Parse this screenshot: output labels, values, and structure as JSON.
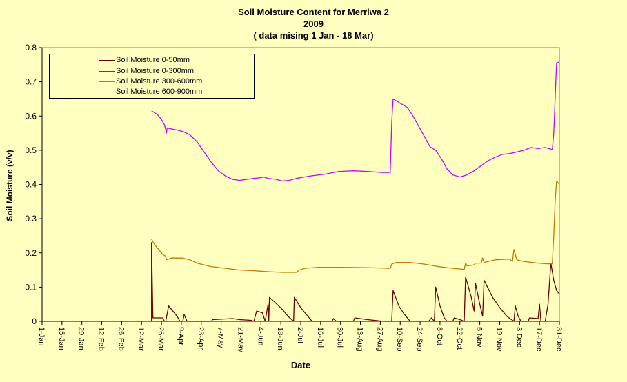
{
  "chart_data": {
    "type": "line",
    "title": "Soil Moisture Content for Merriwa 2",
    "subtitle": "2009",
    "note": "( data mising  1 Jan - 18 Mar)",
    "xlabel": "Date",
    "ylabel": "Soil Moisture (v/v)",
    "ylim": [
      0,
      0.8
    ],
    "yticks": [
      "0",
      "0.1",
      "0.2",
      "0.3",
      "0.4",
      "0.5",
      "0.6",
      "0.7",
      "0.8"
    ],
    "xticks": [
      "1-Jan",
      "15-Jan",
      "29-Jan",
      "12-Feb",
      "26-Feb",
      "12-Mar",
      "26-Mar",
      "9-Apr",
      "23-Apr",
      "7-May",
      "21-May",
      "4-Jun",
      "18-Jun",
      "2-Jul",
      "16-Jul",
      "30-Jul",
      "13-Aug",
      "27-Aug",
      "10-Sep",
      "24-Sep",
      "8-Oct",
      "22-Oct",
      "5-Nov",
      "19-Nov",
      "3-Dec",
      "17-Dec",
      "31-Dec"
    ],
    "xlim_days": [
      1,
      365
    ],
    "grid": false,
    "legend_position": "top-left",
    "series": [
      {
        "name": "Soil Moisture 0-50mm",
        "color": "#6b0000",
        "points": [
          [
            78,
            0.0
          ],
          [
            78,
            0.23
          ],
          [
            79,
            0.01
          ],
          [
            86,
            0.01
          ],
          [
            87,
            0.0
          ],
          [
            88,
            0.0
          ],
          [
            90,
            0.045
          ],
          [
            93,
            0.03
          ],
          [
            96,
            0.015
          ],
          [
            98,
            0.0
          ],
          [
            100,
            0.0
          ],
          [
            101,
            0.02
          ],
          [
            103,
            0.0
          ],
          [
            120,
            0.0
          ],
          [
            121,
            0.005
          ],
          [
            135,
            0.008
          ],
          [
            140,
            0.005
          ],
          [
            148,
            0.003
          ],
          [
            150,
            0.0
          ],
          [
            152,
            0.03
          ],
          [
            156,
            0.025
          ],
          [
            158,
            0.0
          ],
          [
            160,
            0.05
          ],
          [
            160.5,
            0.0
          ],
          [
            161,
            0.07
          ],
          [
            165,
            0.055
          ],
          [
            170,
            0.035
          ],
          [
            174,
            0.015
          ],
          [
            178,
            0.0
          ],
          [
            178.5,
            0.07
          ],
          [
            183,
            0.04
          ],
          [
            187,
            0.02
          ],
          [
            191,
            0.0
          ],
          [
            205,
            0.0
          ],
          [
            206,
            0.008
          ],
          [
            208,
            0.0
          ],
          [
            220,
            0.0
          ],
          [
            221,
            0.01
          ],
          [
            230,
            0.005
          ],
          [
            237,
            0.002
          ],
          [
            241,
            0.0
          ],
          [
            247,
            0.0
          ],
          [
            248,
            0.09
          ],
          [
            252,
            0.045
          ],
          [
            256,
            0.02
          ],
          [
            260,
            0.0
          ],
          [
            273,
            0.0
          ],
          [
            275,
            0.01
          ],
          [
            277,
            0.0
          ],
          [
            278,
            0.1
          ],
          [
            281,
            0.045
          ],
          [
            284,
            0.01
          ],
          [
            286,
            0.0
          ],
          [
            290,
            0.0
          ],
          [
            291,
            0.01
          ],
          [
            295,
            0.005
          ],
          [
            298,
            0.0
          ],
          [
            299,
            0.13
          ],
          [
            303,
            0.07
          ],
          [
            305,
            0.03
          ],
          [
            306,
            0.11
          ],
          [
            309,
            0.05
          ],
          [
            311,
            0.015
          ],
          [
            312,
            0.12
          ],
          [
            318,
            0.07
          ],
          [
            323,
            0.04
          ],
          [
            328,
            0.015
          ],
          [
            333,
            0.0
          ],
          [
            334,
            0.045
          ],
          [
            336,
            0.015
          ],
          [
            338,
            0.0
          ],
          [
            343,
            0.0
          ],
          [
            344,
            0.01
          ],
          [
            350,
            0.008
          ],
          [
            351,
            0.05
          ],
          [
            352,
            0.0
          ],
          [
            355,
            0.0
          ],
          [
            357,
            0.05
          ],
          [
            359,
            0.17
          ],
          [
            361,
            0.12
          ],
          [
            363,
            0.09
          ],
          [
            365,
            0.08
          ]
        ]
      },
      {
        "name": "Soil Moisture 0-300mm",
        "color": "#008000",
        "points": []
      },
      {
        "name": "Soil Moisture 300-600mm",
        "color": "#c87800",
        "points": [
          [
            78,
            0.24
          ],
          [
            80,
            0.225
          ],
          [
            83,
            0.21
          ],
          [
            86,
            0.195
          ],
          [
            88,
            0.19
          ],
          [
            88.5,
            0.18
          ],
          [
            92,
            0.185
          ],
          [
            100,
            0.185
          ],
          [
            105,
            0.18
          ],
          [
            110,
            0.17
          ],
          [
            120,
            0.16
          ],
          [
            130,
            0.155
          ],
          [
            140,
            0.15
          ],
          [
            150,
            0.148
          ],
          [
            160,
            0.145
          ],
          [
            170,
            0.143
          ],
          [
            180,
            0.143
          ],
          [
            182,
            0.15
          ],
          [
            186,
            0.155
          ],
          [
            195,
            0.158
          ],
          [
            210,
            0.158
          ],
          [
            230,
            0.157
          ],
          [
            246,
            0.155
          ],
          [
            247,
            0.167
          ],
          [
            250,
            0.172
          ],
          [
            260,
            0.172
          ],
          [
            270,
            0.167
          ],
          [
            280,
            0.16
          ],
          [
            290,
            0.155
          ],
          [
            298,
            0.152
          ],
          [
            299,
            0.17
          ],
          [
            300,
            0.162
          ],
          [
            305,
            0.165
          ],
          [
            306,
            0.17
          ],
          [
            310,
            0.17
          ],
          [
            311,
            0.185
          ],
          [
            312,
            0.172
          ],
          [
            320,
            0.18
          ],
          [
            330,
            0.182
          ],
          [
            332,
            0.175
          ],
          [
            333,
            0.21
          ],
          [
            335,
            0.18
          ],
          [
            340,
            0.175
          ],
          [
            350,
            0.17
          ],
          [
            356,
            0.168
          ],
          [
            360,
            0.168
          ],
          [
            361,
            0.25
          ],
          [
            362,
            0.35
          ],
          [
            363,
            0.41
          ],
          [
            365,
            0.4
          ]
        ]
      },
      {
        "name": "Soil Moisture 600-900mm",
        "color": "#cc00ff",
        "points": [
          [
            78,
            0.615
          ],
          [
            82,
            0.605
          ],
          [
            85,
            0.59
          ],
          [
            87,
            0.575
          ],
          [
            88,
            0.56
          ],
          [
            88.5,
            0.55
          ],
          [
            89,
            0.565
          ],
          [
            95,
            0.56
          ],
          [
            100,
            0.555
          ],
          [
            105,
            0.545
          ],
          [
            110,
            0.525
          ],
          [
            115,
            0.495
          ],
          [
            120,
            0.465
          ],
          [
            125,
            0.44
          ],
          [
            130,
            0.425
          ],
          [
            135,
            0.415
          ],
          [
            140,
            0.412
          ],
          [
            145,
            0.415
          ],
          [
            150,
            0.418
          ],
          [
            155,
            0.42
          ],
          [
            157,
            0.422
          ],
          [
            160,
            0.418
          ],
          [
            166,
            0.415
          ],
          [
            170,
            0.41
          ],
          [
            175,
            0.412
          ],
          [
            180,
            0.418
          ],
          [
            190,
            0.425
          ],
          [
            200,
            0.43
          ],
          [
            210,
            0.438
          ],
          [
            220,
            0.44
          ],
          [
            230,
            0.438
          ],
          [
            240,
            0.435
          ],
          [
            246,
            0.435
          ],
          [
            247,
            0.58
          ],
          [
            248,
            0.65
          ],
          [
            252,
            0.64
          ],
          [
            258,
            0.625
          ],
          [
            262,
            0.6
          ],
          [
            266,
            0.57
          ],
          [
            270,
            0.54
          ],
          [
            274,
            0.51
          ],
          [
            278,
            0.5
          ],
          [
            282,
            0.475
          ],
          [
            286,
            0.445
          ],
          [
            290,
            0.428
          ],
          [
            295,
            0.422
          ],
          [
            300,
            0.428
          ],
          [
            305,
            0.44
          ],
          [
            310,
            0.455
          ],
          [
            315,
            0.47
          ],
          [
            320,
            0.48
          ],
          [
            325,
            0.488
          ],
          [
            330,
            0.49
          ],
          [
            335,
            0.495
          ],
          [
            340,
            0.5
          ],
          [
            345,
            0.508
          ],
          [
            350,
            0.505
          ],
          [
            355,
            0.508
          ],
          [
            360,
            0.502
          ],
          [
            361,
            0.55
          ],
          [
            362,
            0.65
          ],
          [
            363,
            0.755
          ],
          [
            365,
            0.758
          ]
        ]
      }
    ]
  }
}
